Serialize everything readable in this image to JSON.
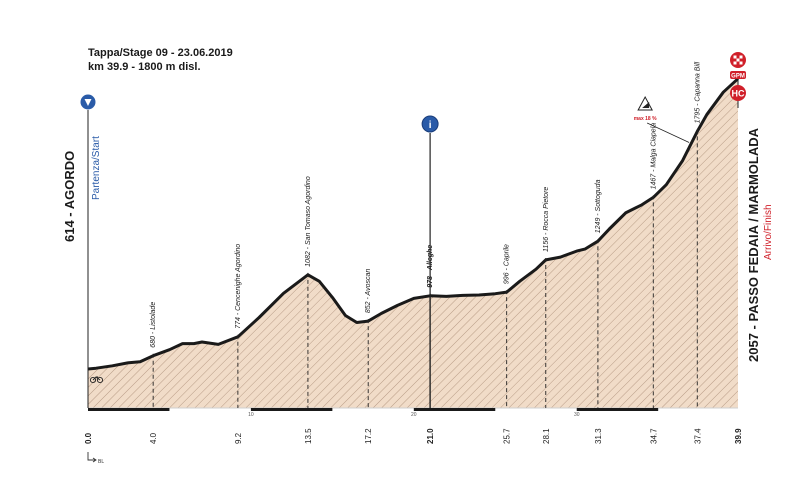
{
  "header": {
    "line1": "Tappa/Stage 09 - 23.06.2019",
    "line2": "km 39.9 - 1800 m disl."
  },
  "start": {
    "name": "614 - AGORDO",
    "role": "Partenza/Start"
  },
  "finish": {
    "name": "2057 - PASSO FEDAIA / MARMOLADA",
    "role": "Arrivo/Finish",
    "badge": "GPM",
    "hc": "HC"
  },
  "climb_note": "max 18 %",
  "intermediate_icon": "i",
  "legend_note": "BL",
  "colors": {
    "fill": "#f1dcc8",
    "hatch": "#b89c86",
    "profile": "#1a1a1a",
    "blue": "#2a5ba8",
    "red": "#d0202a"
  },
  "chart_data": {
    "type": "area",
    "x_unit": "km",
    "y_unit": "m",
    "xlim": [
      0,
      39.9
    ],
    "ylim": [
      420,
      2150
    ],
    "profile": [
      [
        0,
        614
      ],
      [
        0.5,
        618
      ],
      [
        1.5,
        630
      ],
      [
        2.5,
        645
      ],
      [
        3.2,
        650
      ],
      [
        4.0,
        680
      ],
      [
        5.0,
        710
      ],
      [
        5.8,
        740
      ],
      [
        6.5,
        740
      ],
      [
        7.0,
        748
      ],
      [
        8.0,
        736
      ],
      [
        9.2,
        774
      ],
      [
        10.5,
        870
      ],
      [
        12.0,
        990
      ],
      [
        13.5,
        1082
      ],
      [
        14.2,
        1050
      ],
      [
        15.0,
        970
      ],
      [
        15.8,
        880
      ],
      [
        16.5,
        845
      ],
      [
        17.2,
        852
      ],
      [
        18.0,
        890
      ],
      [
        19.0,
        930
      ],
      [
        20.0,
        965
      ],
      [
        21.0,
        978
      ],
      [
        22.0,
        975
      ],
      [
        23.0,
        980
      ],
      [
        24.0,
        982
      ],
      [
        25.0,
        988
      ],
      [
        25.7,
        996
      ],
      [
        26.5,
        1050
      ],
      [
        27.5,
        1110
      ],
      [
        28.1,
        1156
      ],
      [
        29.0,
        1170
      ],
      [
        30.0,
        1200
      ],
      [
        30.5,
        1210
      ],
      [
        31.3,
        1249
      ],
      [
        32.0,
        1310
      ],
      [
        33.0,
        1390
      ],
      [
        34.0,
        1430
      ],
      [
        34.7,
        1467
      ],
      [
        35.5,
        1530
      ],
      [
        36.5,
        1650
      ],
      [
        37.4,
        1795
      ],
      [
        38.0,
        1880
      ],
      [
        39.0,
        1990
      ],
      [
        39.9,
        2057
      ]
    ],
    "waypoints": [
      {
        "km": "0.0",
        "x": 0.0,
        "alt": 614,
        "label": ""
      },
      {
        "km": "4.0",
        "x": 4.0,
        "alt": 680,
        "label": "680 - Listolade"
      },
      {
        "km": "9.2",
        "x": 9.2,
        "alt": 774,
        "label": "774 - Cencenighe Agordino"
      },
      {
        "km": "13.5",
        "x": 13.5,
        "alt": 1082,
        "label": "1082 - San Tomaso Agordino"
      },
      {
        "km": "17.2",
        "x": 17.2,
        "alt": 852,
        "label": "852 - Avoscan"
      },
      {
        "km": "21.0",
        "x": 21.0,
        "alt": 978,
        "label": "978 - Alleghe"
      },
      {
        "km": "25.7",
        "x": 25.7,
        "alt": 996,
        "label": "996 - Caprile"
      },
      {
        "km": "28.1",
        "x": 28.1,
        "alt": 1156,
        "label": "1156 - Rocca Pietore"
      },
      {
        "km": "31.3",
        "x": 31.3,
        "alt": 1249,
        "label": "1249 - Sottoguda"
      },
      {
        "km": "34.7",
        "x": 34.7,
        "alt": 1467,
        "label": "1467 - Malga Ciapela"
      },
      {
        "km": "37.4",
        "x": 37.4,
        "alt": 1795,
        "label": "1795 - Capanna Bill"
      },
      {
        "km": "39.9",
        "x": 39.9,
        "alt": 2057,
        "label": ""
      }
    ],
    "scale_ticks": [
      "10",
      "20",
      "30"
    ]
  }
}
